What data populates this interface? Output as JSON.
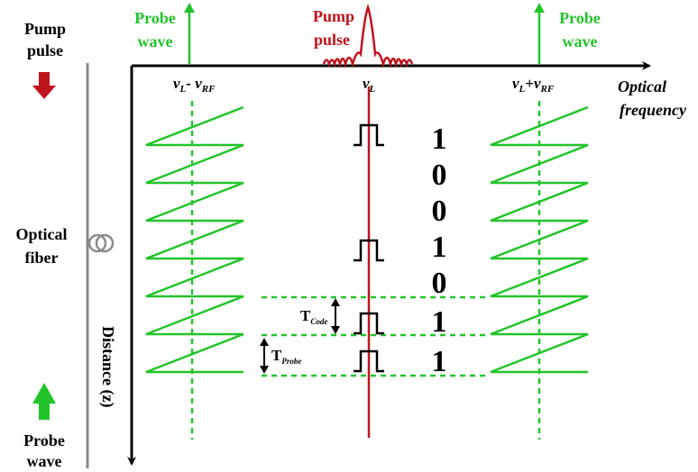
{
  "colors": {
    "pump": "#c0141c",
    "probe": "#22c42a",
    "axis": "#000000",
    "fiber": "#8a8a8a"
  },
  "labels": {
    "pump_pulse_left_line1": "Pump",
    "pump_pulse_left_line2": "pulse",
    "probe_wave_top_left_line1": "Probe",
    "probe_wave_top_left_line2": "wave",
    "pump_pulse_top_line1": "Pump",
    "pump_pulse_top_line2": "pulse",
    "probe_wave_top_right_line1": "Probe",
    "probe_wave_top_right_line2": "wave",
    "freq_left_base": "v",
    "freq_left_sub1": "L",
    "freq_left_mid": "- v",
    "freq_left_sub2": "RF",
    "freq_center_base": "v",
    "freq_center_sub": "L",
    "freq_right_base": "v",
    "freq_right_sub1": "L",
    "freq_right_mid": "+v",
    "freq_right_sub2": "RF",
    "optical_frequency_line1": "Optical",
    "optical_frequency_line2": "frequency",
    "optical_fiber_line1": "Optical",
    "optical_fiber_line2": "fiber",
    "probe_wave_bottom_line1": "Probe",
    "probe_wave_bottom_line2": "wave",
    "distance_axis": "Distance  (z)",
    "t_code_base": "T",
    "t_code_sub": "Code",
    "t_probe_base": "T",
    "t_probe_sub": "Probe"
  },
  "code_bits": [
    "1",
    "0",
    "0",
    "1",
    "0",
    "1",
    "1"
  ],
  "icons": {
    "pump_arrow": "down-arrow-icon",
    "probe_arrow": "up-arrow-icon",
    "fiber_coil": "fiber-coil-icon"
  }
}
